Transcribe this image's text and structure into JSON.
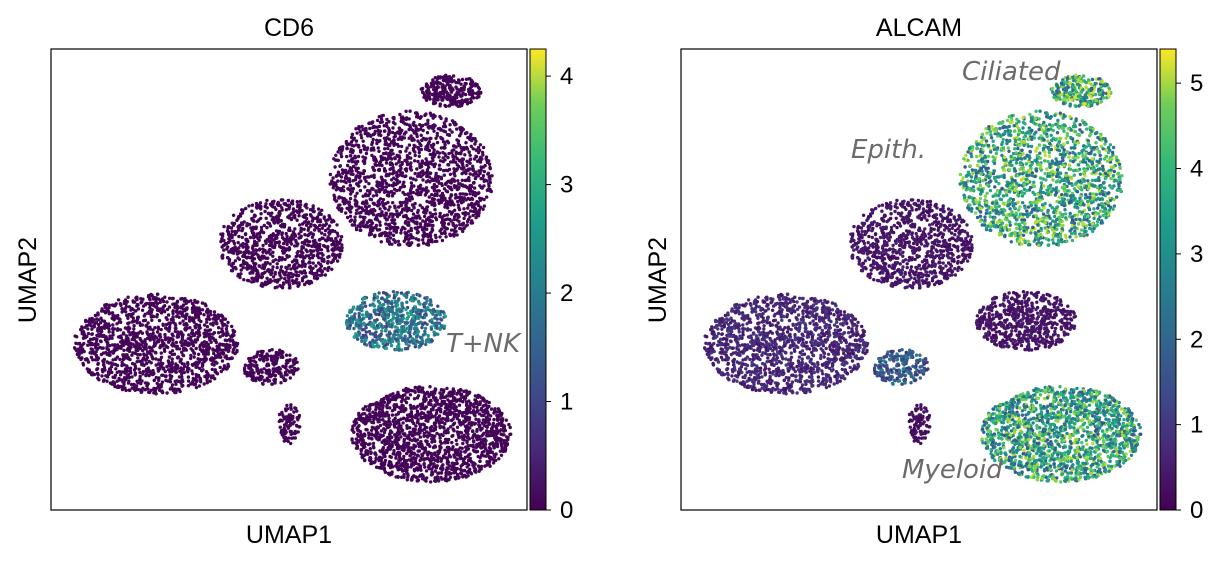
{
  "chart_data": [
    {
      "type": "scatter",
      "title": "CD6",
      "xlabel": "UMAP1",
      "ylabel": "UMAP2",
      "colormap": "viridis",
      "colorbar": {
        "min": 0,
        "max": 4.25,
        "ticks": [
          "0",
          "1",
          "2",
          "3",
          "4"
        ]
      },
      "annotations": [
        {
          "text": "T+NK",
          "cluster": "tnk"
        }
      ],
      "clusters": [
        {
          "id": "ciliated",
          "x": 6.2,
          "y": 9.2,
          "value": 0.05
        },
        {
          "id": "epith",
          "x": 5.2,
          "y": 6.8,
          "value": 0.05
        },
        {
          "id": "mid-left",
          "x": 2.6,
          "y": 5.3,
          "value": 0.05
        },
        {
          "id": "left",
          "x": 0.4,
          "y": 3.4,
          "value": 0.05
        },
        {
          "id": "small-left",
          "x": 2.3,
          "y": 3.1,
          "value": 0.05
        },
        {
          "id": "tnk",
          "x": 5.6,
          "y": 3.8,
          "value": 1.6
        },
        {
          "id": "myeloid",
          "x": 5.9,
          "y": 1.6,
          "value": 0.05
        },
        {
          "id": "small-bottom",
          "x": 2.6,
          "y": 1.8,
          "value": 0.05
        }
      ]
    },
    {
      "type": "scatter",
      "title": "ALCAM",
      "xlabel": "UMAP1",
      "ylabel": "UMAP2",
      "colormap": "viridis",
      "colorbar": {
        "min": 0,
        "max": 5.4,
        "ticks": [
          "0",
          "1",
          "2",
          "3",
          "4",
          "5"
        ]
      },
      "annotations": [
        {
          "text": "Ciliated",
          "cluster": "ciliated"
        },
        {
          "text": "Epith.",
          "cluster": "epith"
        },
        {
          "text": "Myeloid",
          "cluster": "myeloid"
        }
      ],
      "clusters": [
        {
          "id": "ciliated",
          "x": 6.2,
          "y": 9.2,
          "value": 3.4
        },
        {
          "id": "epith",
          "x": 5.2,
          "y": 6.8,
          "value": 3.2
        },
        {
          "id": "mid-left",
          "x": 2.6,
          "y": 5.3,
          "value": 0.3
        },
        {
          "id": "left",
          "x": 0.4,
          "y": 3.4,
          "value": 0.6
        },
        {
          "id": "small-left",
          "x": 2.3,
          "y": 3.1,
          "value": 1.5
        },
        {
          "id": "tnk",
          "x": 5.6,
          "y": 3.8,
          "value": 0.3
        },
        {
          "id": "myeloid",
          "x": 5.9,
          "y": 1.6,
          "value": 3.1
        },
        {
          "id": "small-bottom",
          "x": 2.6,
          "y": 1.8,
          "value": 0.2
        }
      ]
    }
  ]
}
